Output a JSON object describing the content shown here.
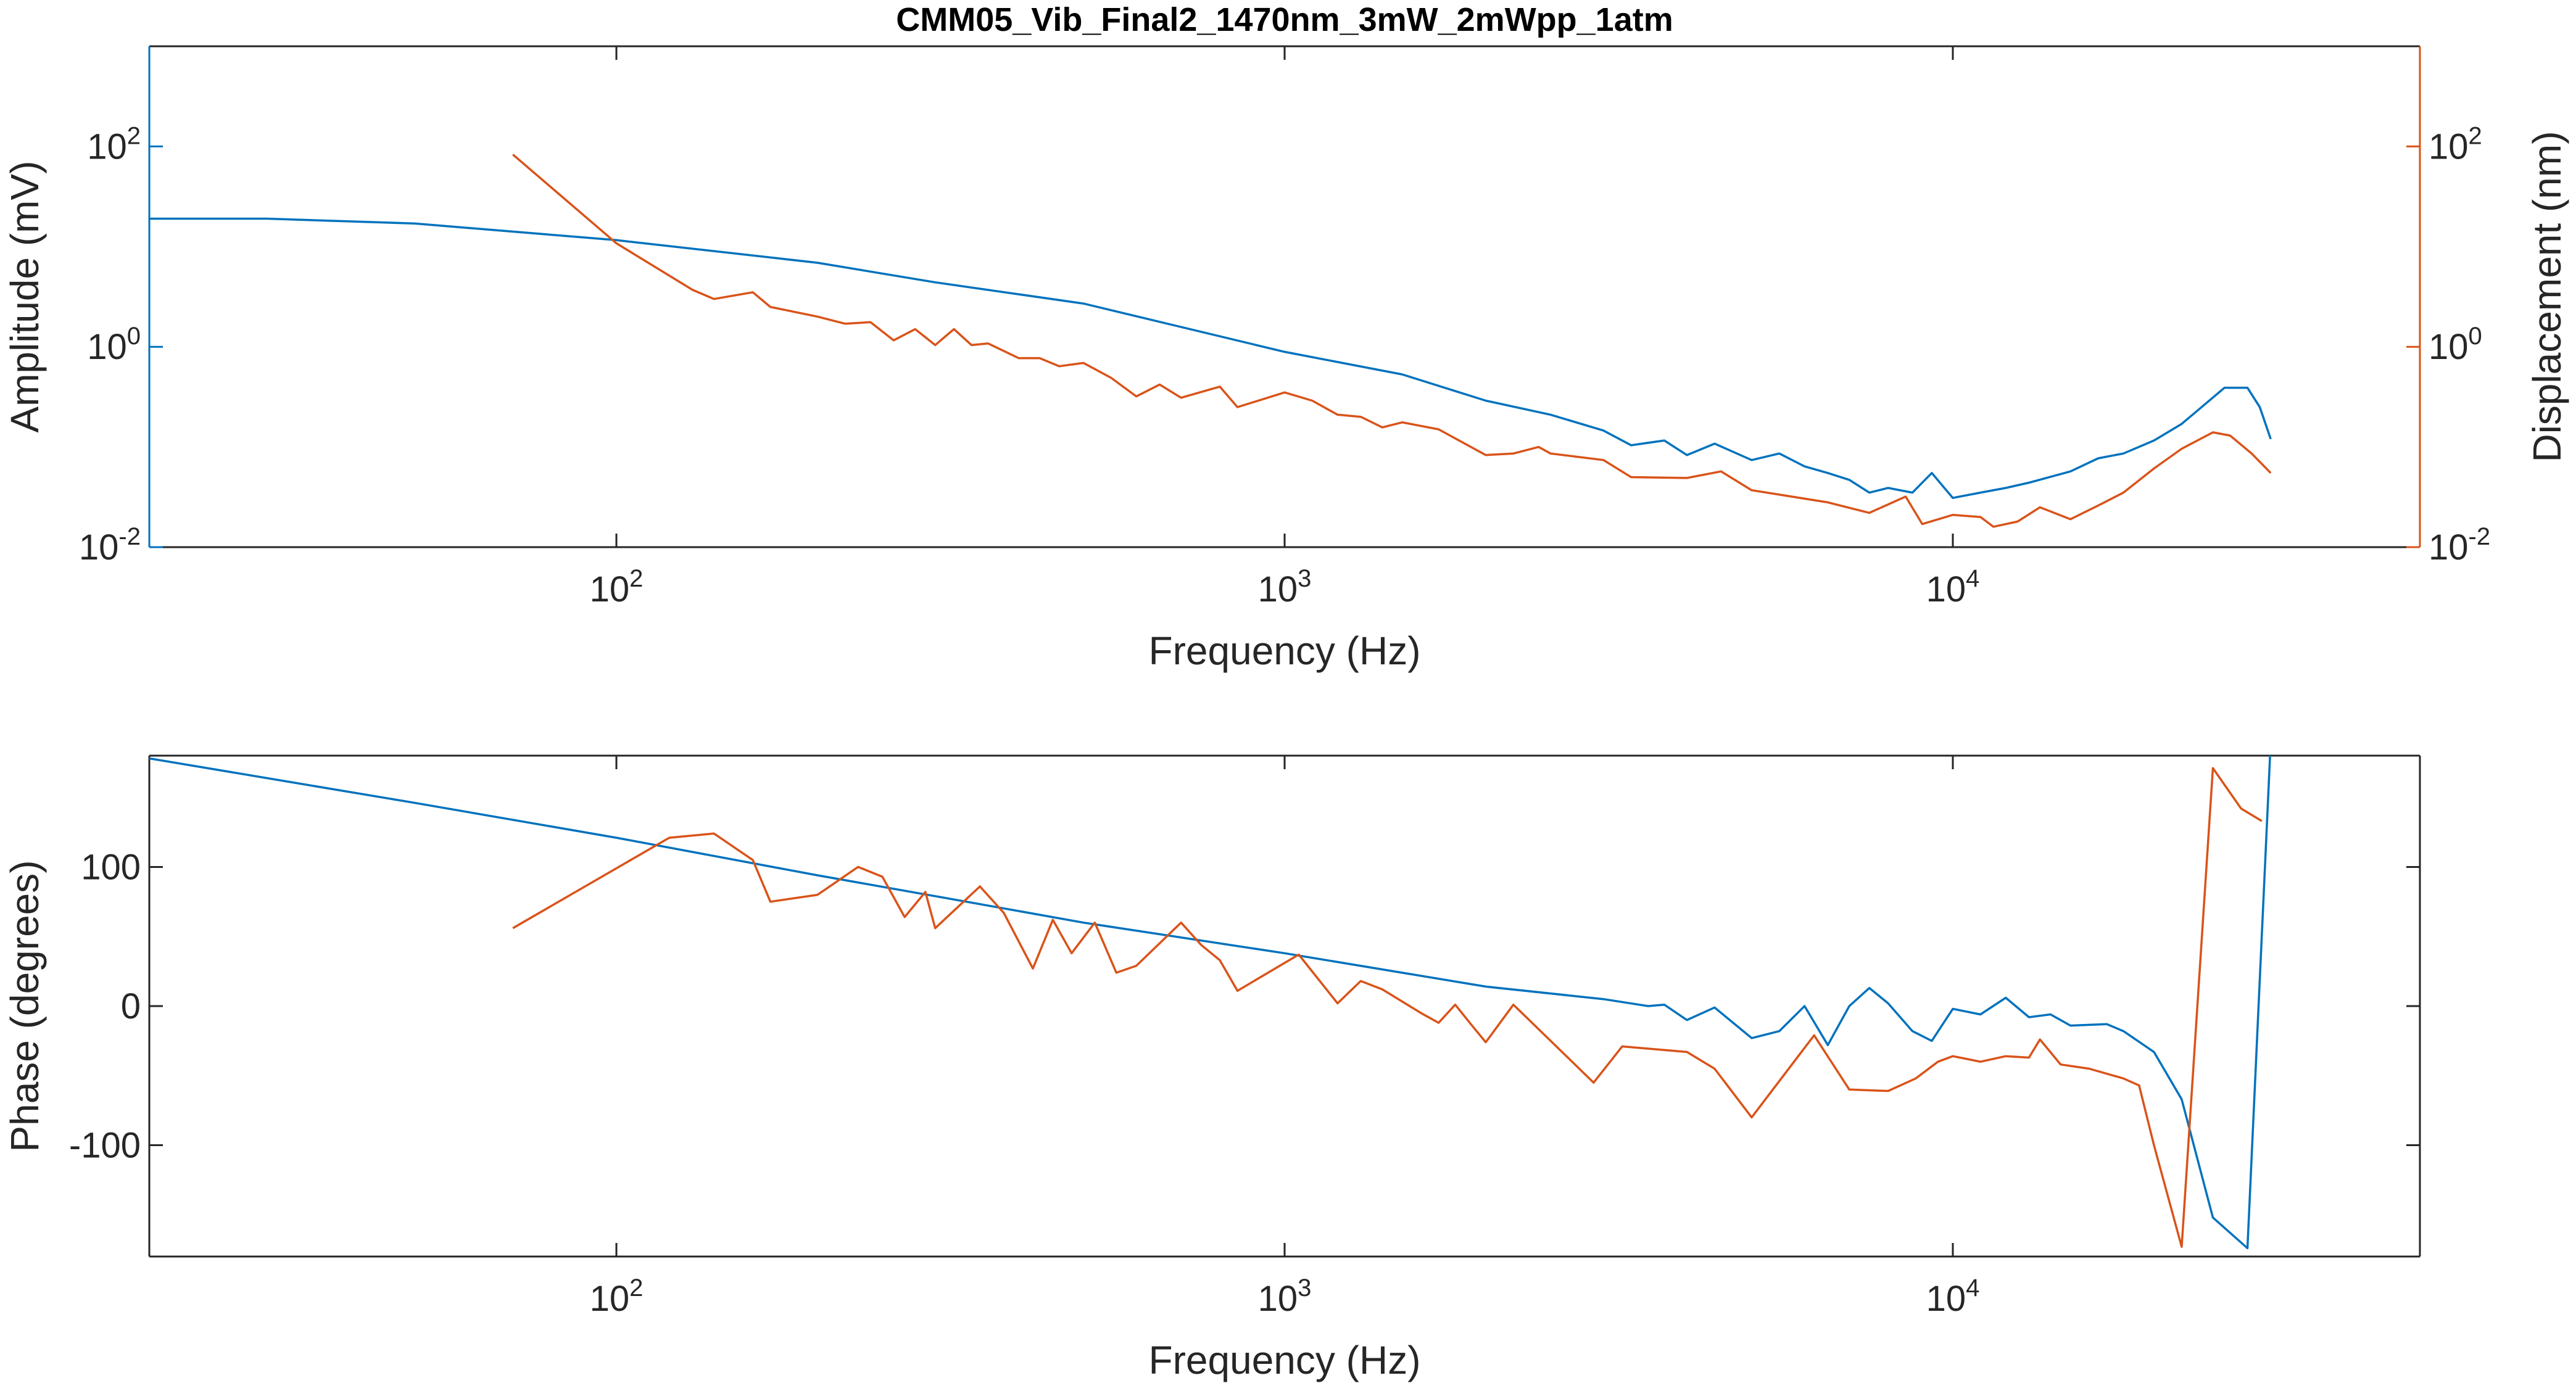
{
  "chart_data": [
    {
      "type": "line",
      "title": "CMM05_Vib_Final2_1470nm_3mW_2mWpp_1atm",
      "xlabel": "Frequency (Hz)",
      "ylabel": "Amplitude (mV)",
      "y2label": "Displacement (nm)",
      "xscale": "log",
      "yscale": "log",
      "xlim": [
        20,
        50000
      ],
      "xticks": [
        {
          "value": 100,
          "label": "10",
          "exponent": "2"
        },
        {
          "value": 1000,
          "label": "10",
          "exponent": "3"
        },
        {
          "value": 10000,
          "label": "10",
          "exponent": "4"
        }
      ],
      "ylim": [
        0.01,
        1000
      ],
      "yticks": [
        {
          "value": 0.01,
          "label": "10",
          "exponent": "-2"
        },
        {
          "value": 1,
          "label": "10",
          "exponent": "0"
        },
        {
          "value": 100,
          "label": "10",
          "exponent": "2"
        }
      ],
      "y2lim": [
        0.01,
        1000
      ],
      "y2ticks": [
        {
          "value": 0.01,
          "label": "10",
          "exponent": "-2"
        },
        {
          "value": 1,
          "label": "10",
          "exponent": "0"
        },
        {
          "value": 100,
          "label": "10",
          "exponent": "2"
        }
      ],
      "series": [
        {
          "color": "#0072BD",
          "x": [
            20,
            30,
            50,
            100,
            200,
            300,
            500,
            1000,
            1500,
            2000,
            2500,
            3000,
            3300,
            3700,
            4000,
            4400,
            5000,
            5500,
            6000,
            6500,
            7000,
            7500,
            8000,
            8700,
            9300,
            10000,
            11000,
            12000,
            13000,
            15000,
            16500,
            18000,
            20000,
            22000,
            25500,
            27600,
            28800,
            29900
          ],
          "values": [
            19,
            19,
            17,
            11.6,
            6.9,
            4.4,
            2.7,
            0.89,
            0.53,
            0.29,
            0.21,
            0.146,
            0.104,
            0.116,
            0.083,
            0.108,
            0.074,
            0.086,
            0.064,
            0.055,
            0.047,
            0.035,
            0.039,
            0.035,
            0.055,
            0.031,
            0.035,
            0.039,
            0.044,
            0.057,
            0.077,
            0.086,
            0.116,
            0.17,
            0.39,
            0.39,
            0.25,
            0.12
          ]
        },
        {
          "color": "#D95319",
          "axis": "y2",
          "x": [
            70,
            100,
            130,
            140,
            160,
            170,
            200,
            220,
            240,
            260,
            280,
            300,
            320,
            340,
            360,
            400,
            430,
            460,
            500,
            550,
            600,
            650,
            700,
            800,
            850,
            1000,
            1100,
            1200,
            1300,
            1400,
            1500,
            1700,
            2000,
            2200,
            2400,
            2500,
            3000,
            3300,
            4000,
            4500,
            5000,
            6500,
            7500,
            8500,
            9000,
            10000,
            11000,
            11500,
            12500,
            13500,
            15000,
            16500,
            18000,
            20000,
            22000,
            24500,
            26000,
            28000,
            29900
          ],
          "values": [
            83,
            10.8,
            3.7,
            3.0,
            3.5,
            2.5,
            2.0,
            1.7,
            1.76,
            1.16,
            1.5,
            1.04,
            1.5,
            1.04,
            1.08,
            0.77,
            0.77,
            0.64,
            0.69,
            0.49,
            0.32,
            0.42,
            0.31,
            0.4,
            0.25,
            0.35,
            0.29,
            0.21,
            0.2,
            0.157,
            0.176,
            0.15,
            0.083,
            0.086,
            0.1,
            0.086,
            0.074,
            0.05,
            0.049,
            0.057,
            0.037,
            0.028,
            0.022,
            0.032,
            0.017,
            0.021,
            0.02,
            0.016,
            0.018,
            0.025,
            0.019,
            0.026,
            0.035,
            0.061,
            0.096,
            0.14,
            0.13,
            0.086,
            0.055
          ]
        }
      ]
    },
    {
      "type": "line",
      "xlabel": "Frequency (Hz)",
      "ylabel": "Phase (degrees)",
      "xscale": "log",
      "xlim": [
        20,
        50000
      ],
      "xticks": [
        {
          "value": 100,
          "label": "10",
          "exponent": "2"
        },
        {
          "value": 1000,
          "label": "10",
          "exponent": "3"
        },
        {
          "value": 10000,
          "label": "10",
          "exponent": "4"
        }
      ],
      "ylim": [
        -180,
        180
      ],
      "yticks": [
        -100,
        0,
        100
      ],
      "series": [
        {
          "color": "#0072BD",
          "x": [
            20,
            50,
            100,
            200,
            300,
            500,
            1000,
            2000,
            3000,
            3500,
            3700,
            4000,
            4400,
            5000,
            5500,
            6000,
            6500,
            7000,
            7500,
            8000,
            8700,
            9300,
            10000,
            11000,
            12000,
            13000,
            14000,
            15000,
            17000,
            18000,
            20000,
            22000,
            24500,
            27600,
            29900
          ],
          "values": [
            178,
            146,
            121,
            94,
            79,
            60,
            38,
            14,
            5,
            0,
            1,
            -10,
            -1,
            -23,
            -18,
            0,
            -28,
            0,
            13,
            2,
            -18,
            -25,
            -2,
            -6,
            6,
            -8,
            -6,
            -14,
            -13,
            -18,
            -33,
            -67,
            -152,
            -174,
            190
          ]
        },
        {
          "color": "#D95319",
          "x": [
            70,
            120,
            140,
            160,
            170,
            200,
            230,
            250,
            270,
            290,
            300,
            350,
            380,
            420,
            450,
            480,
            520,
            560,
            600,
            700,
            750,
            800,
            850,
            1050,
            1200,
            1300,
            1400,
            1600,
            1700,
            1800,
            1900,
            2000,
            2200,
            2900,
            3200,
            4000,
            4400,
            5000,
            6200,
            7000,
            8000,
            8800,
            9500,
            10000,
            11000,
            12000,
            13000,
            13500,
            14500,
            16000,
            18000,
            19000,
            20000,
            22000,
            24500,
            27000,
            29000
          ],
          "values": [
            56,
            121,
            124,
            105,
            75,
            80,
            100,
            93,
            64,
            82,
            56,
            86,
            67,
            27,
            62,
            38,
            60,
            24,
            29,
            60,
            44,
            33,
            11,
            37,
            2,
            18,
            12,
            -5,
            -12,
            1,
            -13,
            -26,
            1,
            -55,
            -29,
            -33,
            -45,
            -80,
            -21,
            -60,
            -61,
            -52,
            -40,
            -36,
            -40,
            -36,
            -37,
            -24,
            -42,
            -45,
            -52,
            -57,
            -100,
            -173,
            171,
            142,
            133
          ]
        }
      ]
    }
  ]
}
